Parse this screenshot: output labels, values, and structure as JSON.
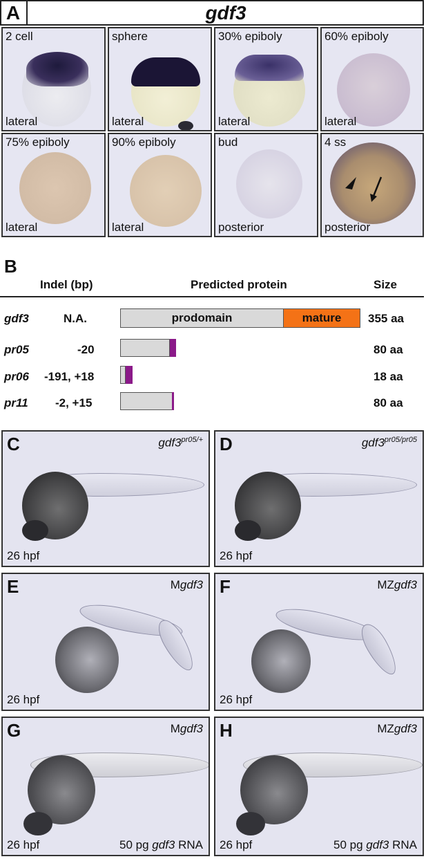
{
  "panel_a": {
    "letter": "A",
    "title": "gdf3",
    "tiles": [
      {
        "stage": "2 cell",
        "view": "lateral"
      },
      {
        "stage": "sphere",
        "view": "lateral"
      },
      {
        "stage": "30% epiboly",
        "view": "lateral"
      },
      {
        "stage": "60% epiboly",
        "view": "lateral"
      },
      {
        "stage": "75% epiboly",
        "view": "lateral"
      },
      {
        "stage": "90% epiboly",
        "view": "lateral"
      },
      {
        "stage": "bud",
        "view": "posterior"
      },
      {
        "stage": "4 ss",
        "view": "posterior"
      }
    ]
  },
  "panel_b": {
    "letter": "B",
    "headers": {
      "indel": "Indel (bp)",
      "protein": "Predicted protein",
      "size": "Size"
    },
    "rows": [
      {
        "gene": "gdf3",
        "indel": "N.A.",
        "size": "355 aa",
        "prodomain_label": "prodomain",
        "mature_label": "mature"
      },
      {
        "gene": "pr05",
        "indel": "-20",
        "size": "80 aa"
      },
      {
        "gene": "pr06",
        "indel": "-191, +18",
        "size": "18 aa"
      },
      {
        "gene": "pr11",
        "indel": "-2, +15",
        "size": "80 aa"
      }
    ]
  },
  "panels": [
    {
      "letter": "C",
      "geno_main": "gdf3",
      "geno_sup": "pr05/+",
      "geno_prefix": "",
      "hpf": "26 hpf",
      "rna_pre": "",
      "rna_gene": "",
      "rna_post": ""
    },
    {
      "letter": "D",
      "geno_main": "gdf3",
      "geno_sup": "pr05/pr05",
      "geno_prefix": "",
      "hpf": "26 hpf",
      "rna_pre": "",
      "rna_gene": "",
      "rna_post": ""
    },
    {
      "letter": "E",
      "geno_prefix": "M",
      "geno_main": "gdf3",
      "geno_sup": "",
      "hpf": "26 hpf",
      "rna_pre": "",
      "rna_gene": "",
      "rna_post": ""
    },
    {
      "letter": "F",
      "geno_prefix": "MZ",
      "geno_main": "gdf3",
      "geno_sup": "",
      "hpf": "26 hpf",
      "rna_pre": "",
      "rna_gene": "",
      "rna_post": ""
    },
    {
      "letter": "G",
      "geno_prefix": "M",
      "geno_main": "gdf3",
      "geno_sup": "",
      "hpf": "26 hpf",
      "rna_pre": "50 pg ",
      "rna_gene": "gdf3",
      "rna_post": " RNA"
    },
    {
      "letter": "H",
      "geno_prefix": "MZ",
      "geno_main": "gdf3",
      "geno_sup": "",
      "hpf": "26 hpf",
      "rna_pre": "50 pg ",
      "rna_gene": "gdf3",
      "rna_post": " RNA"
    }
  ],
  "colors": {
    "mature": "#f47216",
    "frameshift": "#8b1a89",
    "prodomain": "#d9d9d9"
  }
}
